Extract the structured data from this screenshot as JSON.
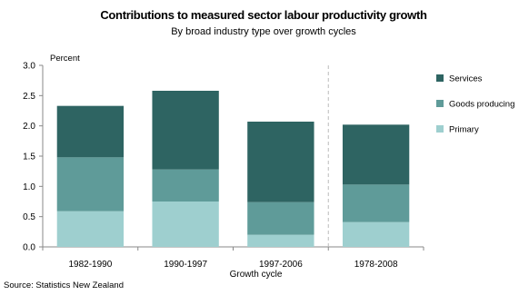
{
  "header": {
    "title": "Contributions to measured sector labour productivity growth",
    "subtitle": "By broad industry type over growth cycles"
  },
  "footer": {
    "source": "Source: Statistics New Zealand"
  },
  "chart_data": {
    "type": "bar",
    "stacked": true,
    "categories": [
      "1982-1990",
      "1990-1997",
      "1997-2006",
      "1978-2008"
    ],
    "series": [
      {
        "name": "Primary",
        "values": [
          0.59,
          0.75,
          0.2,
          0.41
        ],
        "color": "#9ecfcf"
      },
      {
        "name": "Goods producing",
        "values": [
          0.89,
          0.53,
          0.54,
          0.62
        ],
        "color": "#5f9b99"
      },
      {
        "name": "Services",
        "values": [
          0.85,
          1.3,
          1.33,
          0.99
        ],
        "color": "#2e6462"
      }
    ],
    "xlabel": "Growth cycle",
    "ylabel": "Percent",
    "ylim": [
      0,
      3.0
    ],
    "yticks": [
      "0.0",
      "0.5",
      "1.0",
      "1.5",
      "2.0",
      "2.5",
      "3.0"
    ],
    "grid": false,
    "legend_position": "right",
    "divider_after_category": 3
  }
}
